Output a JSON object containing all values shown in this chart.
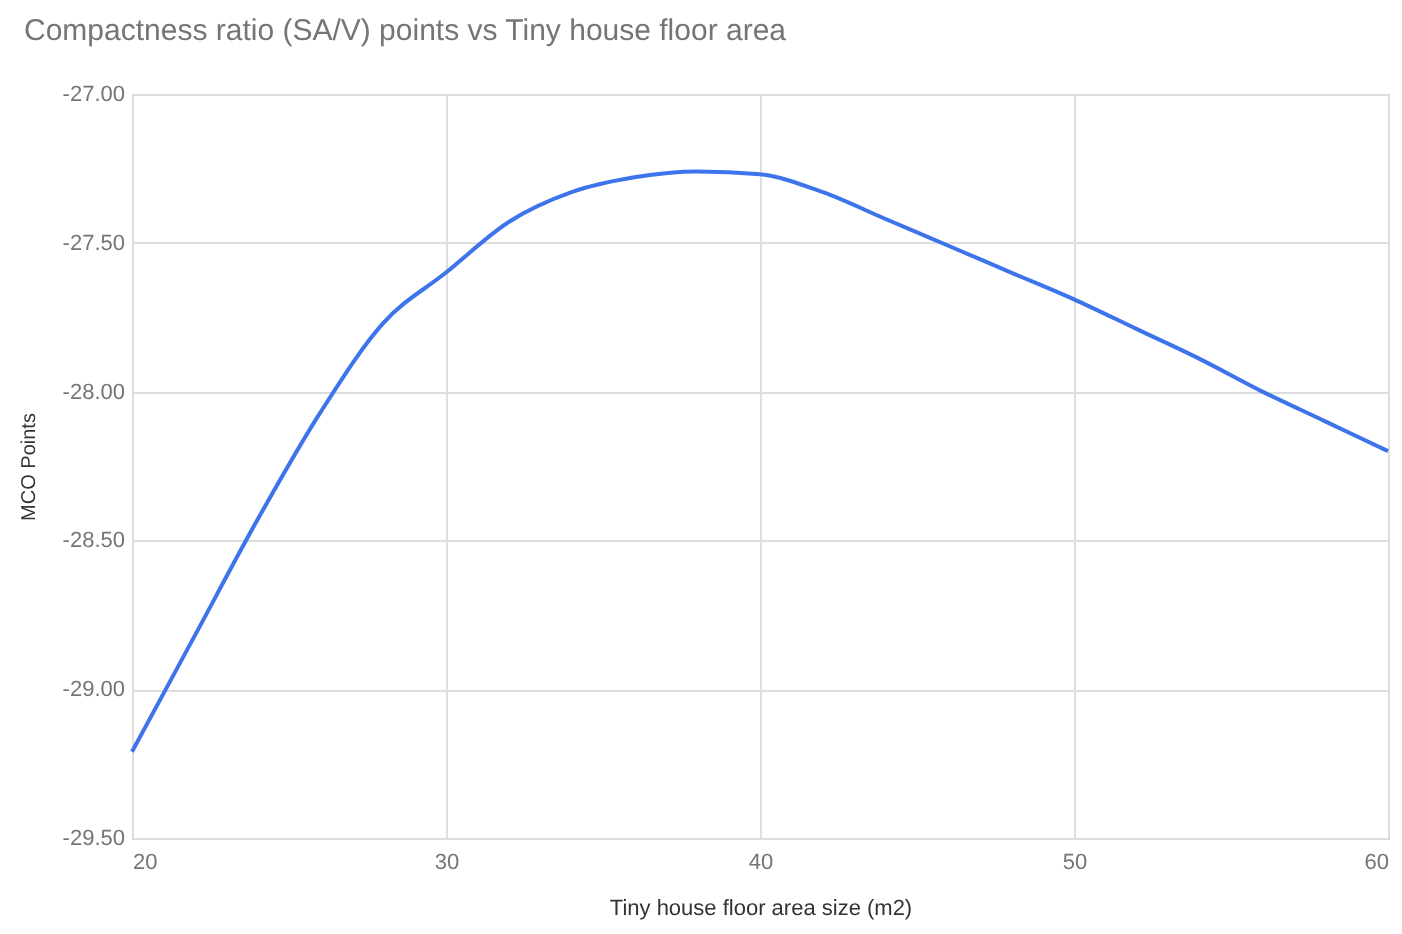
{
  "chart_data": {
    "type": "line",
    "title": "Compactness ratio (SA/V) points vs Tiny house floor area",
    "xlabel": "Tiny house floor area size (m2)",
    "ylabel": "MCO Points",
    "x": [
      20,
      22,
      24,
      26,
      28,
      30,
      32,
      34,
      36,
      38,
      40,
      42,
      44,
      46,
      48,
      50,
      52,
      54,
      56,
      58,
      60
    ],
    "series": [
      {
        "color": "#3d74ec",
        "values": [
          -29.21,
          -28.82,
          -28.43,
          -28.07,
          -27.77,
          -27.6,
          -27.43,
          -27.33,
          -27.28,
          -27.26,
          -27.27,
          -27.33,
          -27.42,
          -27.51,
          -27.6,
          -27.69,
          -27.79,
          -27.89,
          -28.0,
          -28.1,
          -28.2
        ]
      }
    ],
    "xlim": [
      20,
      60
    ],
    "xticks": [
      20,
      30,
      40,
      50,
      60
    ],
    "ylim": [
      -29.5,
      -27.0
    ],
    "yticks": [
      {
        "value": -29.5,
        "label": "-29.50"
      },
      {
        "value": -29.0,
        "label": "-29.00"
      },
      {
        "value": -28.5,
        "label": "-28.50"
      },
      {
        "value": -28.0,
        "label": "-28.00"
      },
      {
        "value": -27.5,
        "label": "-27.50"
      },
      {
        "value": -27.0,
        "label": "-27.00"
      }
    ],
    "grid": true,
    "legend": false,
    "marker": "none",
    "line_style": "solid"
  }
}
